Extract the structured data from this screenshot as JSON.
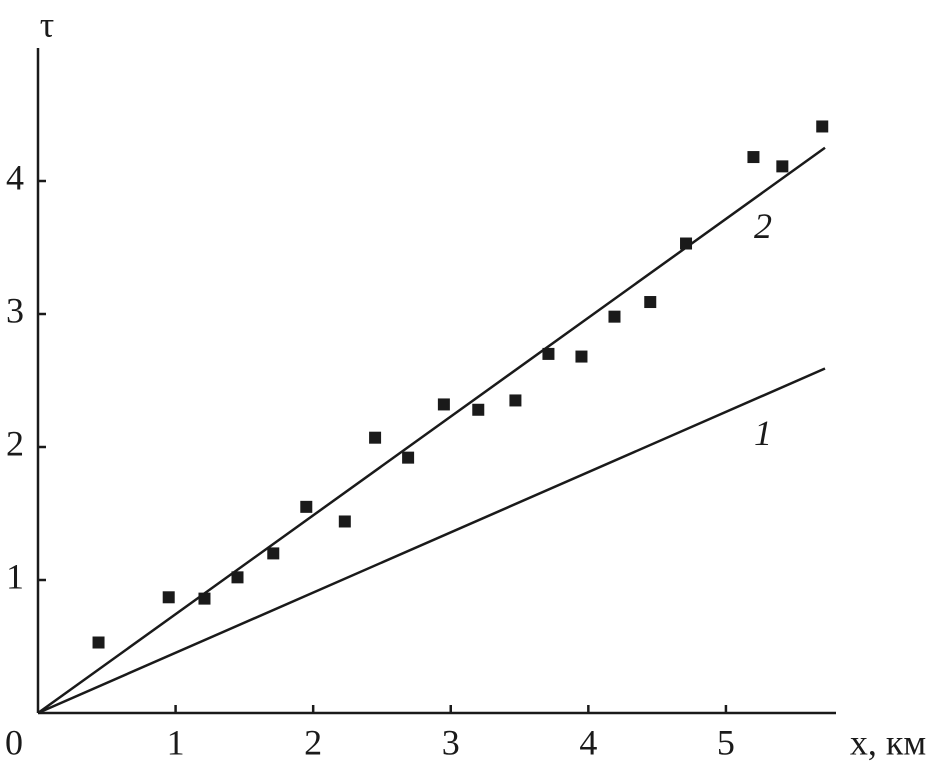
{
  "chart_data": {
    "type": "scatter",
    "x_label": "x, км",
    "y_label": "τ",
    "xlim": [
      0,
      5.8
    ],
    "ylim": [
      0,
      5
    ],
    "xticks": [
      0,
      1,
      2,
      3,
      4,
      5
    ],
    "yticks": [
      1,
      2,
      3,
      4
    ],
    "color": "#1a1a1a",
    "points": {
      "x": [
        0.44,
        0.95,
        1.21,
        1.45,
        1.71,
        1.95,
        2.23,
        2.45,
        2.69,
        2.95,
        3.2,
        3.47,
        3.71,
        3.95,
        4.19,
        4.45,
        4.71,
        5.2,
        5.41,
        5.7
      ],
      "values": [
        0.53,
        0.87,
        0.86,
        1.02,
        1.2,
        1.55,
        1.44,
        2.07,
        1.92,
        2.32,
        2.28,
        2.35,
        2.7,
        2.68,
        2.98,
        3.09,
        3.53,
        4.18,
        4.11,
        4.41
      ]
    },
    "series": [
      {
        "name": "1",
        "x": [
          0,
          5.72
        ],
        "values": [
          0,
          2.59
        ]
      },
      {
        "name": "2",
        "x": [
          0,
          5.72
        ],
        "values": [
          0,
          4.25
        ]
      }
    ]
  }
}
